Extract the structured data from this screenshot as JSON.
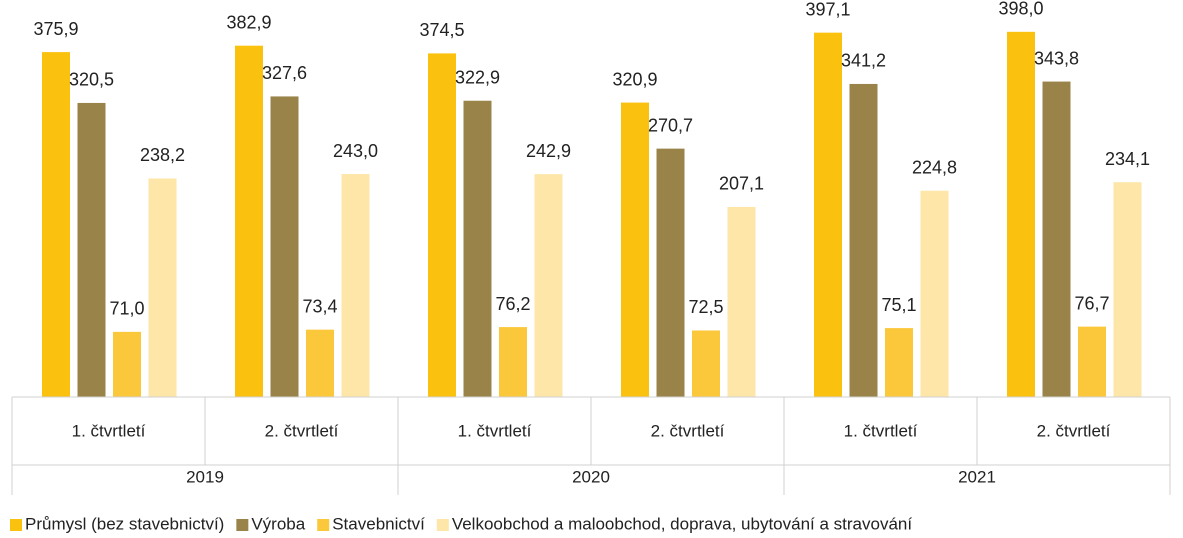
{
  "chart_data": {
    "type": "bar",
    "categories": [
      "1. čtvrtletí",
      "2. čtvrtletí",
      "1. čtvrtletí",
      "2. čtvrtletí",
      "1. čtvrtletí",
      "2. čtvrtletí"
    ],
    "category_groups": [
      "2019",
      "2020",
      "2021"
    ],
    "series": [
      {
        "name": "Průmysl (bez stavebnictví)",
        "color": "#fbc10f",
        "values": [
          375.9,
          382.9,
          374.5,
          320.9,
          397.1,
          398.0
        ],
        "value_labels": [
          "375,9",
          "382,9",
          "374,5",
          "320,9",
          "397,1",
          "398,0"
        ]
      },
      {
        "name": "Výroba",
        "color": "#9a8349",
        "values": [
          320.5,
          327.6,
          322.9,
          270.7,
          341.2,
          343.8
        ],
        "value_labels": [
          "320,5",
          "327,6",
          "322,9",
          "270,7",
          "341,2",
          "343,8"
        ]
      },
      {
        "name": "Stavebnictví",
        "color": "#fcc83b",
        "values": [
          71.0,
          73.4,
          76.2,
          72.5,
          75.1,
          76.7
        ],
        "value_labels": [
          "71,0",
          "73,4",
          "76,2",
          "72,5",
          "75,1",
          "76,7"
        ]
      },
      {
        "name": "Velkoobchod a maloobchod, doprava, ubytování a stravování",
        "color": "#fde6a8",
        "values": [
          238.2,
          243.0,
          242.9,
          207.1,
          224.8,
          234.1
        ],
        "value_labels": [
          "238,2",
          "243,0",
          "242,9",
          "207,1",
          "224,8",
          "234,1"
        ]
      }
    ],
    "ylim": [
      0,
      400
    ],
    "legend": "bottom"
  }
}
